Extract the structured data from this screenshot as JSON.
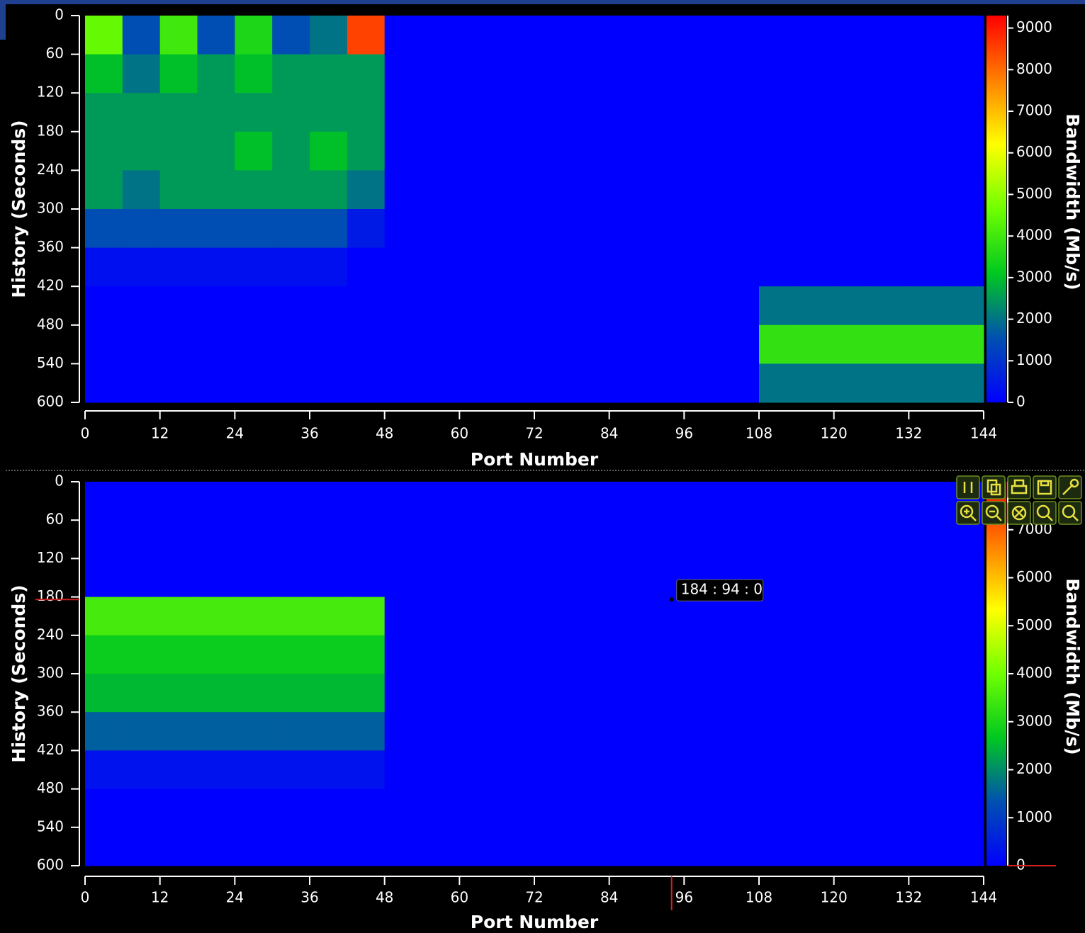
{
  "chart_data": [
    {
      "type": "heatmap",
      "x_label": "Port Number",
      "y_label": "History (Seconds)",
      "colorbar_label": "Bandwidth (Mb/s)",
      "xlim": [
        0,
        144
      ],
      "ylim": [
        0,
        600
      ],
      "y_inverted": true,
      "zlim": [
        0,
        9300
      ],
      "xticks": [
        0,
        12,
        24,
        36,
        48,
        60,
        72,
        84,
        96,
        108,
        120,
        132,
        144
      ],
      "yticks": [
        0,
        60,
        120,
        180,
        240,
        300,
        360,
        420,
        480,
        540,
        600
      ],
      "zticks": [
        0,
        1000,
        2000,
        3000,
        4000,
        5000,
        6000,
        7000,
        8000,
        9000
      ],
      "colorscale": [
        "#0000ff",
        "#0050b0",
        "#00c820",
        "#70ff00",
        "#ffff00",
        "#ff8000",
        "#ff0000"
      ],
      "x_bins": [
        0,
        6,
        12,
        18,
        24,
        30,
        36,
        42,
        48,
        54,
        60,
        66,
        72,
        78,
        84,
        90,
        96,
        102,
        108,
        114,
        120,
        126,
        132,
        138,
        144
      ],
      "y_bins": [
        0,
        60,
        120,
        180,
        240,
        300,
        360,
        420,
        480,
        540,
        600
      ],
      "values": [
        [
          4500,
          1500,
          4000,
          1500,
          3500,
          1500,
          2000,
          8500,
          0,
          0,
          0,
          0,
          0,
          0,
          0,
          0,
          0,
          0,
          0,
          0,
          0,
          0,
          0,
          0
        ],
        [
          3000,
          2000,
          3000,
          2500,
          3000,
          2500,
          2500,
          2500,
          0,
          0,
          0,
          0,
          0,
          0,
          0,
          0,
          0,
          0,
          0,
          0,
          0,
          0,
          0,
          0
        ],
        [
          2500,
          2500,
          2500,
          2500,
          2500,
          2500,
          2500,
          2500,
          0,
          0,
          0,
          0,
          0,
          0,
          0,
          0,
          0,
          0,
          0,
          0,
          0,
          0,
          0,
          0
        ],
        [
          2500,
          2500,
          2500,
          2500,
          3000,
          2500,
          3000,
          2500,
          0,
          0,
          0,
          0,
          0,
          0,
          0,
          0,
          0,
          0,
          0,
          0,
          0,
          0,
          0,
          0
        ],
        [
          2500,
          2000,
          2500,
          2500,
          2500,
          2500,
          2500,
          2000,
          0,
          0,
          0,
          0,
          0,
          0,
          0,
          0,
          0,
          0,
          0,
          0,
          0,
          0,
          0,
          0
        ],
        [
          1500,
          1500,
          1500,
          1500,
          1500,
          1500,
          1500,
          500,
          0,
          0,
          0,
          0,
          0,
          0,
          0,
          0,
          0,
          0,
          0,
          0,
          0,
          0,
          0,
          0
        ],
        [
          300,
          300,
          300,
          300,
          300,
          300,
          300,
          0,
          0,
          0,
          0,
          0,
          0,
          0,
          0,
          0,
          0,
          0,
          0,
          0,
          0,
          0,
          0,
          0
        ],
        [
          0,
          0,
          0,
          0,
          0,
          0,
          0,
          0,
          0,
          0,
          0,
          0,
          0,
          0,
          0,
          0,
          0,
          0,
          2000,
          2000,
          2000,
          2000,
          2000,
          2000
        ],
        [
          0,
          0,
          0,
          0,
          0,
          0,
          0,
          0,
          0,
          0,
          0,
          0,
          0,
          0,
          0,
          0,
          0,
          0,
          3800,
          3800,
          3800,
          3800,
          3800,
          3800
        ],
        [
          0,
          0,
          0,
          0,
          0,
          0,
          0,
          0,
          0,
          0,
          0,
          0,
          0,
          0,
          0,
          0,
          0,
          0,
          2000,
          2000,
          2000,
          2000,
          2000,
          2000
        ]
      ]
    },
    {
      "type": "heatmap",
      "x_label": "Port Number",
      "y_label": "History (Seconds)",
      "colorbar_label": "Bandwidth (Mb/s)",
      "xlim": [
        0,
        144
      ],
      "ylim": [
        0,
        600
      ],
      "y_inverted": true,
      "zlim": [
        0,
        8000
      ],
      "xticks": [
        0,
        12,
        24,
        36,
        48,
        60,
        72,
        84,
        96,
        108,
        120,
        132,
        144
      ],
      "yticks": [
        0,
        60,
        120,
        180,
        240,
        300,
        360,
        420,
        480,
        540,
        600
      ],
      "zticks": [
        0,
        1000,
        2000,
        3000,
        4000,
        5000,
        6000,
        7000
      ],
      "colorscale": [
        "#0000ff",
        "#0050b0",
        "#00c820",
        "#70ff00",
        "#ffff00",
        "#ff8000",
        "#ff0000"
      ],
      "x_bins": [
        0,
        6,
        12,
        18,
        24,
        30,
        36,
        42,
        48,
        54,
        60,
        66,
        72,
        78,
        84,
        90,
        96,
        102,
        108,
        114,
        120,
        126,
        132,
        138,
        144
      ],
      "y_bins": [
        0,
        60,
        120,
        180,
        240,
        300,
        360,
        420,
        480,
        540,
        600
      ],
      "values": [
        [
          0,
          0,
          0,
          0,
          0,
          0,
          0,
          0,
          0,
          0,
          0,
          0,
          0,
          0,
          0,
          0,
          0,
          0,
          0,
          0,
          0,
          0,
          0,
          0
        ],
        [
          0,
          0,
          0,
          0,
          0,
          0,
          0,
          0,
          0,
          0,
          0,
          0,
          0,
          0,
          0,
          0,
          0,
          0,
          0,
          0,
          0,
          0,
          0,
          0
        ],
        [
          0,
          0,
          0,
          0,
          0,
          0,
          0,
          0,
          0,
          0,
          0,
          0,
          0,
          0,
          0,
          0,
          0,
          0,
          0,
          0,
          0,
          0,
          0,
          0
        ],
        [
          3500,
          3500,
          3500,
          3500,
          3500,
          3500,
          3500,
          3500,
          0,
          0,
          0,
          0,
          0,
          0,
          0,
          0,
          0,
          0,
          0,
          0,
          0,
          0,
          0,
          0
        ],
        [
          2800,
          2800,
          2800,
          2800,
          2800,
          2800,
          2800,
          2800,
          0,
          0,
          0,
          0,
          0,
          0,
          0,
          0,
          0,
          0,
          0,
          0,
          0,
          0,
          0,
          0
        ],
        [
          2500,
          2500,
          2500,
          2500,
          2500,
          2500,
          2500,
          2500,
          0,
          0,
          0,
          0,
          0,
          0,
          0,
          0,
          0,
          0,
          0,
          0,
          0,
          0,
          0,
          0
        ],
        [
          1500,
          1500,
          1500,
          1500,
          1500,
          1500,
          1500,
          1500,
          0,
          0,
          0,
          0,
          0,
          0,
          0,
          0,
          0,
          0,
          0,
          0,
          0,
          0,
          0,
          0
        ],
        [
          300,
          300,
          300,
          300,
          300,
          300,
          300,
          300,
          0,
          0,
          0,
          0,
          0,
          0,
          0,
          0,
          0,
          0,
          0,
          0,
          0,
          0,
          0,
          0
        ],
        [
          0,
          0,
          0,
          0,
          0,
          0,
          0,
          0,
          0,
          0,
          0,
          0,
          0,
          0,
          0,
          0,
          0,
          0,
          0,
          0,
          0,
          0,
          0,
          0
        ],
        [
          0,
          0,
          0,
          0,
          0,
          0,
          0,
          0,
          0,
          0,
          0,
          0,
          0,
          0,
          0,
          0,
          0,
          0,
          0,
          0,
          0,
          0,
          0,
          0
        ]
      ],
      "cursor": {
        "x": 94,
        "y": 184,
        "z": 0,
        "label": "184 : 94 : 0"
      }
    }
  ]
}
